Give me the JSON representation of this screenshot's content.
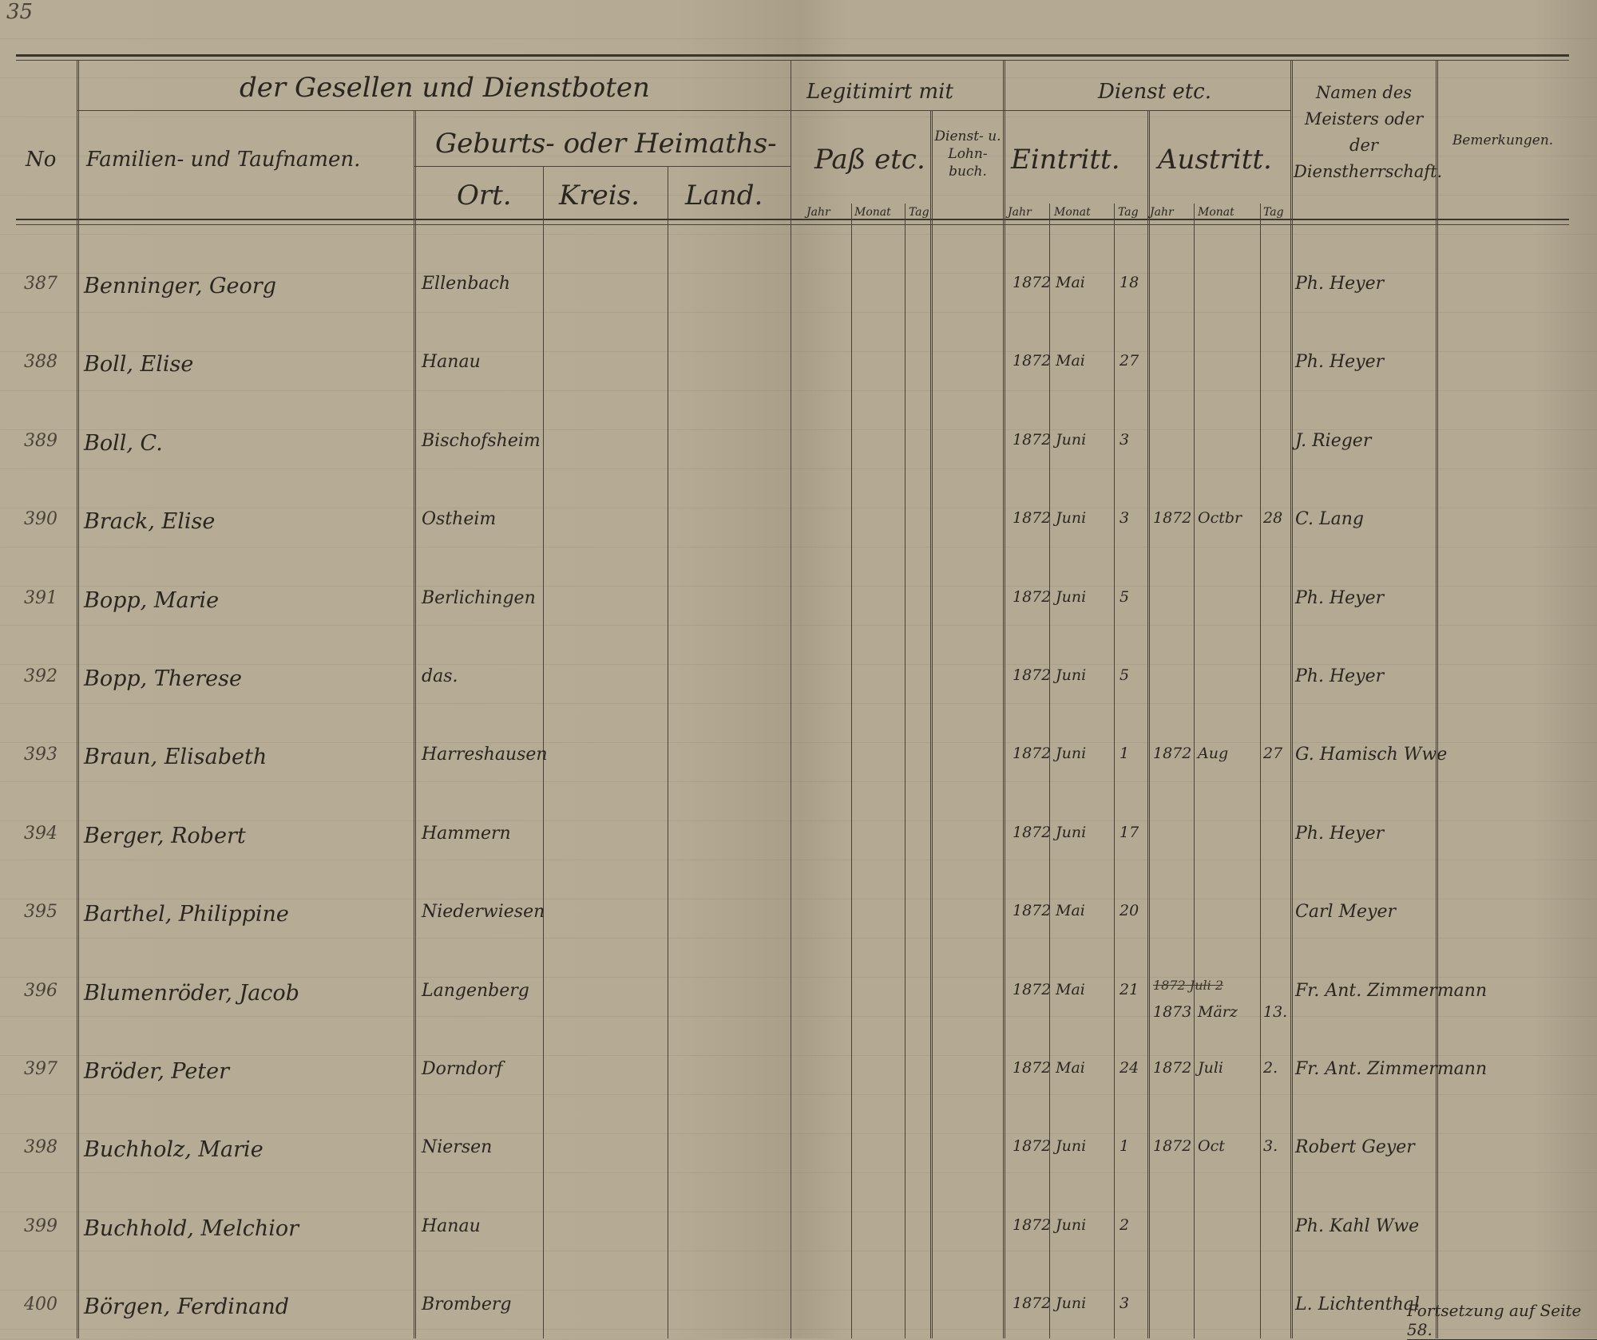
{
  "page_number": "35",
  "header": {
    "group_title": "der Gesellen und Dienstboten",
    "no": "No",
    "name": "Familien- und Taufnamen.",
    "origin_group": "Geburts- oder Heimaths-",
    "ort": "Ort.",
    "kreis": "Kreis.",
    "land": "Land.",
    "legitimation_group": "Legitimirt mit",
    "pass": "Paß etc.",
    "dienstbuch": "Dienst- u. Lohn- buch.",
    "service_group": "Dienst etc.",
    "eintritt": "Eintritt.",
    "austritt": "Austritt.",
    "master": "Namen des Meisters oder der Dienstherrschaft.",
    "remarks": "Bemerkungen.",
    "jahr": "Jahr",
    "monat": "Monat",
    "tag": "Tag"
  },
  "rows": [
    {
      "no": "387",
      "name": "Benninger, Georg",
      "ort": "Ellenbach",
      "in_year": "1872",
      "in_month": "Mai",
      "in_day": "18",
      "out_year": "",
      "out_month": "",
      "out_day": "",
      "master": "Ph. Heyer"
    },
    {
      "no": "388",
      "name": "Boll, Elise",
      "ort": "Hanau",
      "in_year": "1872",
      "in_month": "Mai",
      "in_day": "27",
      "out_year": "",
      "out_month": "",
      "out_day": "",
      "master": "Ph. Heyer"
    },
    {
      "no": "389",
      "name": "Boll, C.",
      "ort": "Bischofsheim",
      "in_year": "1872",
      "in_month": "Juni",
      "in_day": "3",
      "out_year": "",
      "out_month": "",
      "out_day": "",
      "master": "J. Rieger"
    },
    {
      "no": "390",
      "name": "Brack, Elise",
      "ort": "Ostheim",
      "in_year": "1872",
      "in_month": "Juni",
      "in_day": "3",
      "out_year": "1872",
      "out_month": "Octbr",
      "out_day": "28",
      "master": "C. Lang"
    },
    {
      "no": "391",
      "name": "Bopp, Marie",
      "ort": "Berlichingen",
      "in_year": "1872",
      "in_month": "Juni",
      "in_day": "5",
      "out_year": "",
      "out_month": "",
      "out_day": "",
      "master": "Ph. Heyer"
    },
    {
      "no": "392",
      "name": "Bopp, Therese",
      "ort": "das.",
      "in_year": "1872",
      "in_month": "Juni",
      "in_day": "5",
      "out_year": "",
      "out_month": "",
      "out_day": "",
      "master": "Ph. Heyer"
    },
    {
      "no": "393",
      "name": "Braun, Elisabeth",
      "ort": "Harreshausen",
      "in_year": "1872",
      "in_month": "Juni",
      "in_day": "1",
      "out_year": "1872",
      "out_month": "Aug",
      "out_day": "27",
      "master": "G. Hamisch Wwe"
    },
    {
      "no": "394",
      "name": "Berger, Robert",
      "ort": "Hammern",
      "in_year": "1872",
      "in_month": "Juni",
      "in_day": "17",
      "out_year": "",
      "out_month": "",
      "out_day": "",
      "master": "Ph. Heyer"
    },
    {
      "no": "395",
      "name": "Barthel, Philippine",
      "ort": "Niederwiesen",
      "in_year": "1872",
      "in_month": "Mai",
      "in_day": "20",
      "out_year": "",
      "out_month": "",
      "out_day": "",
      "master": "Carl Meyer"
    },
    {
      "no": "396",
      "name": "Blumenröder, Jacob",
      "ort": "Langenberg",
      "in_year": "1872",
      "in_month": "Mai",
      "in_day": "21",
      "out_year": "1873",
      "out_month": "März",
      "out_day": "13.",
      "master": "Fr. Ant. Zimmermann",
      "struck_out": "1872 Juli 2"
    },
    {
      "no": "397",
      "name": "Bröder, Peter",
      "ort": "Dorndorf",
      "in_year": "1872",
      "in_month": "Mai",
      "in_day": "24",
      "out_year": "1872",
      "out_month": "Juli",
      "out_day": "2.",
      "master": "Fr. Ant. Zimmermann"
    },
    {
      "no": "398",
      "name": "Buchholz, Marie",
      "ort": "Niersen",
      "in_year": "1872",
      "in_month": "Juni",
      "in_day": "1",
      "out_year": "1872",
      "out_month": "Oct",
      "out_day": "3.",
      "master": "Robert Geyer"
    },
    {
      "no": "399",
      "name": "Buchhold, Melchior",
      "ort": "Hanau",
      "in_year": "1872",
      "in_month": "Juni",
      "in_day": "2",
      "out_year": "",
      "out_month": "",
      "out_day": "",
      "master": "Ph. Kahl Wwe"
    },
    {
      "no": "400",
      "name": "Börgen, Ferdinand",
      "ort": "Bromberg",
      "in_year": "1872",
      "in_month": "Juni",
      "in_day": "3",
      "out_year": "",
      "out_month": "",
      "out_day": "",
      "master": "L. Lichtenthal"
    }
  ],
  "continuation_note": "Fortsetzung auf Seite 58."
}
